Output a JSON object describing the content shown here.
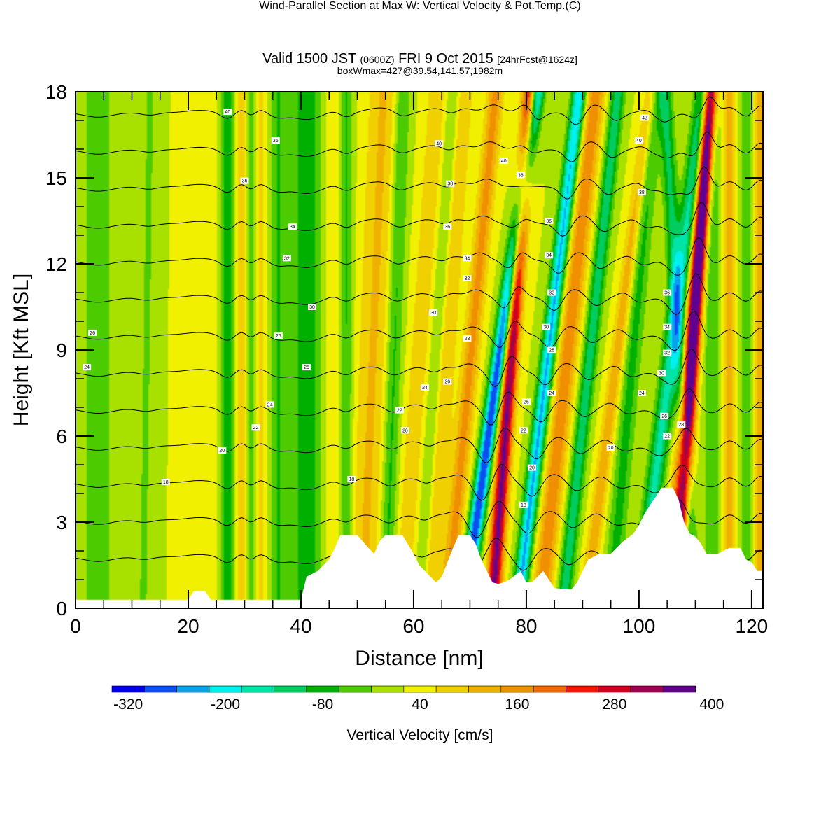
{
  "header": {
    "title": "Wind-Parallel Section at Max W: Vertical Velocity & Pot.Temp.",
    "copyright": "(C)",
    "valid_prefix": "Valid 1500 JST",
    "valid_utc": "(0600Z)",
    "valid_date": "FRI 9 Oct 2015",
    "forecast": "[24hrFcst@1624z]",
    "boxwmax": "boxWmax=427@39.54,141.57,1982m"
  },
  "chart_data": {
    "type": "heatmap",
    "subtype": "vertical cross-section with potential temperature contours",
    "xlabel": "Distance [nm]",
    "ylabel": "Height [Kft MSL]",
    "xlim": [
      0,
      122
    ],
    "ylim": [
      0,
      18
    ],
    "x_ticks": [
      0,
      20,
      40,
      60,
      80,
      100,
      120
    ],
    "y_ticks": [
      0,
      3,
      6,
      9,
      12,
      15,
      18
    ],
    "colorbar": {
      "title": "Vertical Velocity [cm/s]",
      "bounds": [
        -340,
        -300,
        -260,
        -220,
        -180,
        -140,
        -100,
        -60,
        -20,
        20,
        60,
        100,
        140,
        180,
        220,
        260,
        300,
        340,
        380,
        420
      ],
      "colors": [
        "#0000e6",
        "#0a50f0",
        "#0aa0f0",
        "#00f0f0",
        "#00e4a8",
        "#00cc60",
        "#00b000",
        "#4ccc00",
        "#a8e000",
        "#f0f000",
        "#f0d000",
        "#f0b000",
        "#f09000",
        "#f06800",
        "#f01800",
        "#d00020",
        "#a00050",
        "#600090"
      ],
      "labels": [
        -320,
        -200,
        -80,
        40,
        160,
        280,
        400
      ]
    },
    "background_w": 20,
    "w_features": [
      {
        "x": 4,
        "w": 2.5,
        "amp": -80,
        "tilt": 0
      },
      {
        "x": 12,
        "w": 1.5,
        "amp": -45,
        "tilt": 0.02
      },
      {
        "x": 22,
        "w": 2.2,
        "amp": 40,
        "tilt": 0
      },
      {
        "x": 27,
        "w": 1.2,
        "amp": -110,
        "tilt": 0
      },
      {
        "x": 29.5,
        "w": 1.2,
        "amp": 60,
        "tilt": 0
      },
      {
        "x": 31,
        "w": 0.8,
        "amp": -70,
        "tilt": 0
      },
      {
        "x": 33,
        "w": 0.9,
        "amp": 50,
        "tilt": 0
      },
      {
        "x": 36,
        "w": 1.5,
        "amp": -80,
        "tilt": 0
      },
      {
        "x": 41,
        "w": 2.5,
        "amp": -120,
        "tilt": 0
      },
      {
        "x": 46,
        "w": 1.5,
        "amp": 40,
        "tilt": 0
      },
      {
        "x": 48,
        "w": 1.2,
        "amp": -90,
        "tilt": 0
      },
      {
        "x": 51,
        "w": 2.8,
        "amp": 85,
        "tilt": 0.06
      },
      {
        "x": 55,
        "w": 1.4,
        "amp": -95,
        "tilt": 0.05
      },
      {
        "x": 58,
        "w": 1.8,
        "amp": 70,
        "tilt": 0.1
      },
      {
        "x": 61,
        "w": 1.1,
        "amp": -55,
        "tilt": 0.1
      },
      {
        "x": 63,
        "w": 1.6,
        "amp": 75,
        "tilt": 0.1
      },
      {
        "x": 66,
        "w": 1.5,
        "amp": 135,
        "tilt": 0.14
      },
      {
        "x": 69,
        "w": 1.3,
        "amp": -320,
        "tilt": 0.21
      },
      {
        "x": 74,
        "w": 1.3,
        "amp": 330,
        "tilt": 0.11
      },
      {
        "x": 78.5,
        "w": 1.3,
        "amp": -250,
        "tilt": 0.18
      },
      {
        "x": 82.5,
        "w": 1.8,
        "amp": 150,
        "tilt": 0.16
      },
      {
        "x": 86.5,
        "w": 1.3,
        "amp": -150,
        "tilt": 0.16
      },
      {
        "x": 90.5,
        "w": 1.3,
        "amp": 110,
        "tilt": 0.19
      },
      {
        "x": 95,
        "w": 1.6,
        "amp": -95,
        "tilt": 0.13
      },
      {
        "x": 100,
        "w": 1.6,
        "amp": -175,
        "tilt": 0.19
      },
      {
        "x": 104.5,
        "w": 1.2,
        "amp": 90,
        "tilt": 0.14
      },
      {
        "x": 106.5,
        "w": 1.2,
        "amp": 380,
        "tilt": 0.1
      },
      {
        "x": 109.5,
        "w": 1.3,
        "amp": -130,
        "tilt": -0.08
      },
      {
        "x": 113,
        "w": 1.6,
        "amp": -75,
        "tilt": 0
      },
      {
        "x": 116,
        "w": 1.2,
        "amp": 100,
        "tilt": 0
      },
      {
        "x": 119,
        "w": 1.1,
        "amp": -70,
        "tilt": 0
      },
      {
        "x": 121.5,
        "w": 1.0,
        "amp": 120,
        "tilt": 0
      }
    ],
    "terrain": [
      [
        0,
        0.3
      ],
      [
        20,
        0.3
      ],
      [
        21,
        0.6
      ],
      [
        23,
        0.6
      ],
      [
        24,
        0.3
      ],
      [
        40,
        0.3
      ],
      [
        41,
        1.1
      ],
      [
        43,
        1.3
      ],
      [
        45,
        1.7
      ],
      [
        46,
        2.1
      ],
      [
        47,
        2.55
      ],
      [
        50,
        2.55
      ],
      [
        52,
        2.1
      ],
      [
        53,
        1.9
      ],
      [
        54,
        2.35
      ],
      [
        55,
        2.55
      ],
      [
        58,
        2.55
      ],
      [
        60,
        1.9
      ],
      [
        61,
        1.5
      ],
      [
        62,
        1.3
      ],
      [
        64,
        0.9
      ],
      [
        65,
        1.1
      ],
      [
        66,
        1.6
      ],
      [
        67,
        2.1
      ],
      [
        68,
        2.55
      ],
      [
        70,
        2.55
      ],
      [
        71,
        2.25
      ],
      [
        72,
        1.7
      ],
      [
        73,
        1.3
      ],
      [
        74,
        0.9
      ],
      [
        75,
        0.85
      ],
      [
        76,
        0.9
      ],
      [
        77,
        1.0
      ],
      [
        79,
        1.3
      ],
      [
        80,
        0.9
      ],
      [
        81,
        0.9
      ],
      [
        82,
        1.1
      ],
      [
        83,
        1.3
      ],
      [
        84,
        1.0
      ],
      [
        85,
        0.7
      ],
      [
        88,
        0.65
      ],
      [
        89,
        0.9
      ],
      [
        90,
        1.3
      ],
      [
        91,
        1.7
      ],
      [
        93,
        1.9
      ],
      [
        95,
        1.9
      ],
      [
        97,
        2.3
      ],
      [
        99,
        2.6
      ],
      [
        100,
        2.9
      ],
      [
        101,
        3.3
      ],
      [
        102,
        3.6
      ],
      [
        103,
        3.9
      ],
      [
        104,
        4.2
      ],
      [
        106,
        4.2
      ],
      [
        107,
        3.8
      ],
      [
        108,
        3.0
      ],
      [
        109,
        2.6
      ],
      [
        110,
        2.5
      ],
      [
        111,
        2.25
      ],
      [
        112,
        1.9
      ],
      [
        114,
        1.9
      ],
      [
        116,
        2.1
      ],
      [
        118,
        2.1
      ],
      [
        119,
        1.7
      ],
      [
        120,
        1.6
      ],
      [
        121,
        1.3
      ],
      [
        122,
        1.3
      ]
    ],
    "theta_levels": [
      16,
      18,
      20,
      22,
      24,
      26,
      28,
      30,
      32,
      34,
      36,
      38,
      40,
      42,
      44
    ],
    "theta_base": {
      "theta0": 14,
      "height0": 0.5,
      "rate": 1.55
    },
    "contour_labels": [
      {
        "text": "40",
        "x": 27,
        "y": 17.3
      },
      {
        "text": "36",
        "x": 35.5,
        "y": 16.3
      },
      {
        "text": "36",
        "x": 30,
        "y": 14.9
      },
      {
        "text": "34",
        "x": 38.5,
        "y": 13.3
      },
      {
        "text": "32",
        "x": 37.5,
        "y": 12.2
      },
      {
        "text": "30",
        "x": 42,
        "y": 10.5
      },
      {
        "text": "26",
        "x": 3,
        "y": 9.6
      },
      {
        "text": "26",
        "x": 36,
        "y": 9.5
      },
      {
        "text": "24",
        "x": 2,
        "y": 8.4
      },
      {
        "text": "25",
        "x": 41,
        "y": 8.4
      },
      {
        "text": "24",
        "x": 34.5,
        "y": 7.1
      },
      {
        "text": "24",
        "x": 62,
        "y": 7.7
      },
      {
        "text": "22",
        "x": 32,
        "y": 6.3
      },
      {
        "text": "22",
        "x": 57.5,
        "y": 6.9
      },
      {
        "text": "20",
        "x": 26,
        "y": 5.5
      },
      {
        "text": "20",
        "x": 58.5,
        "y": 6.2
      },
      {
        "text": "18",
        "x": 16,
        "y": 4.4
      },
      {
        "text": "18",
        "x": 49,
        "y": 4.5
      },
      {
        "text": "40",
        "x": 64.5,
        "y": 16.2
      },
      {
        "text": "38",
        "x": 66.5,
        "y": 14.8
      },
      {
        "text": "36",
        "x": 66,
        "y": 13.3
      },
      {
        "text": "34",
        "x": 69.5,
        "y": 12.2
      },
      {
        "text": "32",
        "x": 69.5,
        "y": 11.5
      },
      {
        "text": "30",
        "x": 63.5,
        "y": 10.3
      },
      {
        "text": "28",
        "x": 69.5,
        "y": 9.4
      },
      {
        "text": "26",
        "x": 66,
        "y": 7.9
      },
      {
        "text": "40",
        "x": 76,
        "y": 15.6
      },
      {
        "text": "38",
        "x": 79,
        "y": 15.1
      },
      {
        "text": "36",
        "x": 84,
        "y": 13.5
      },
      {
        "text": "34",
        "x": 84,
        "y": 12.3
      },
      {
        "text": "32",
        "x": 84.5,
        "y": 11.0
      },
      {
        "text": "30",
        "x": 83.5,
        "y": 9.8
      },
      {
        "text": "28",
        "x": 84.5,
        "y": 9.0
      },
      {
        "text": "24",
        "x": 84.5,
        "y": 7.5
      },
      {
        "text": "26",
        "x": 80,
        "y": 7.2
      },
      {
        "text": "22",
        "x": 79.5,
        "y": 6.2
      },
      {
        "text": "20",
        "x": 81,
        "y": 4.9
      },
      {
        "text": "18",
        "x": 79.5,
        "y": 3.6
      },
      {
        "text": "20",
        "x": 95,
        "y": 5.6
      },
      {
        "text": "42",
        "x": 101,
        "y": 17.1
      },
      {
        "text": "40",
        "x": 100,
        "y": 16.3
      },
      {
        "text": "38",
        "x": 100.5,
        "y": 14.5
      },
      {
        "text": "36",
        "x": 105,
        "y": 11.0
      },
      {
        "text": "34",
        "x": 105,
        "y": 9.8
      },
      {
        "text": "32",
        "x": 105,
        "y": 8.9
      },
      {
        "text": "30",
        "x": 104,
        "y": 8.2
      },
      {
        "text": "24",
        "x": 100.5,
        "y": 7.5
      },
      {
        "text": "26",
        "x": 104.5,
        "y": 6.7
      },
      {
        "text": "22",
        "x": 105,
        "y": 6.0
      },
      {
        "text": "28",
        "x": 107.5,
        "y": 6.4
      }
    ]
  }
}
